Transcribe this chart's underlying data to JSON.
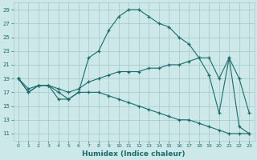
{
  "xlabel": "Humidex (Indice chaleur)",
  "bg_color": "#cce8e8",
  "grid_color": "#aacccc",
  "line_color": "#1a6b6b",
  "xlim": [
    -0.5,
    23.5
  ],
  "ylim": [
    10,
    30
  ],
  "xticks": [
    0,
    1,
    2,
    3,
    4,
    5,
    6,
    7,
    8,
    9,
    10,
    11,
    12,
    13,
    14,
    15,
    16,
    17,
    18,
    19,
    20,
    21,
    22,
    23
  ],
  "yticks": [
    11,
    13,
    15,
    17,
    19,
    21,
    23,
    25,
    27,
    29
  ],
  "top_x": [
    0,
    1,
    2,
    3,
    4,
    5,
    6,
    7,
    8,
    9,
    10,
    11,
    12,
    13,
    14,
    15,
    16,
    17,
    18,
    19,
    20,
    21,
    22,
    23
  ],
  "top_y": [
    19,
    17,
    18,
    18,
    17,
    16,
    17,
    22,
    23,
    26,
    28,
    29,
    29,
    28,
    27,
    26.5,
    25,
    24,
    22,
    19.5,
    14,
    22,
    12,
    11
  ],
  "mid_x": [
    0,
    1,
    2,
    3,
    4,
    5,
    6,
    7,
    8,
    9,
    10,
    11,
    12,
    13,
    14,
    15,
    16,
    17,
    18,
    19,
    20,
    21,
    22,
    23
  ],
  "mid_y": [
    19,
    17.5,
    18,
    18,
    17.5,
    17,
    17.5,
    18.5,
    19,
    19.5,
    20,
    20,
    20,
    20.5,
    20.5,
    21,
    21,
    21.5,
    22,
    22,
    19,
    22,
    19,
    14
  ],
  "bot_x": [
    0,
    1,
    2,
    3,
    4,
    5,
    6,
    7,
    8,
    9,
    10,
    11,
    12,
    13,
    14,
    15,
    16,
    17,
    18,
    19,
    20,
    21,
    22,
    23
  ],
  "bot_y": [
    19,
    17,
    18,
    18,
    16,
    16,
    17,
    17,
    17,
    16.5,
    16,
    15.5,
    15,
    14.5,
    14,
    13.5,
    13,
    13,
    12.5,
    12,
    11.5,
    11,
    11,
    11
  ]
}
